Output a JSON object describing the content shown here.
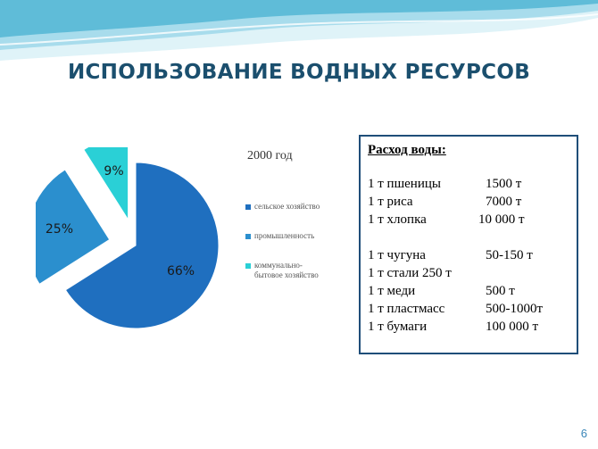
{
  "slide": {
    "title": "ИСПОЛЬЗОВАНИЕ ВОДНЫХ РЕСУРСОВ",
    "page_number": "6"
  },
  "chart_data": {
    "type": "pie",
    "title": "2000 год",
    "slices": [
      {
        "label": "сельское хозяйство",
        "value": 66,
        "value_label": "66%",
        "color": "#1f6fbf",
        "exploded": false
      },
      {
        "label": "промышленность",
        "value": 25,
        "value_label": "25%",
        "color": "#2b8fce",
        "exploded": true
      },
      {
        "label": "коммунально-\nбытовое хозяйство",
        "value": 9,
        "value_label": "9%",
        "color": "#2ad0d6",
        "exploded": true
      }
    ],
    "legend_position": "right"
  },
  "water_box": {
    "header": "Расход воды:",
    "group1": [
      {
        "item": "1 т пшеницы",
        "amount": "1500 т"
      },
      {
        "item": "1 т риса",
        "amount": "7000 т"
      },
      {
        "item": "1 т хлопка",
        "amount": "10 000 т"
      }
    ],
    "group2": [
      {
        "item": "1 т чугуна",
        "amount": "50-150 т"
      },
      {
        "item": "1 т стали 250 т",
        "amount": ""
      },
      {
        "item": "1 т меди",
        "amount": "500 т"
      },
      {
        "item": "1 т пластмасс",
        "amount": "500-1000т"
      },
      {
        "item": "1 т бумаги",
        "amount": "100 000 т"
      }
    ]
  },
  "colors": {
    "title": "#1b4f6e",
    "box_border": "#1f4e79",
    "wave_light": "#dff3f8",
    "wave_mid": "#a8dcec",
    "wave_dark": "#5fbcd8",
    "page_number": "#3a86b8"
  }
}
